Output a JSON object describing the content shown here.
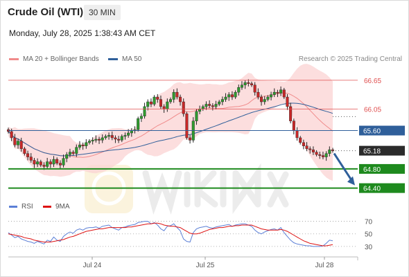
{
  "header": {
    "instrument": "Crude Oil (WTI)",
    "timeframe": "30 MIN",
    "datetime": "Monday, July 28, 2025 1:38:43 AM CET",
    "credit": "Research © 2025 Trading Central"
  },
  "legend": {
    "ma20_label": "MA 20 + Bollinger Bands",
    "ma20_color": "#f08a8a",
    "ma50_label": "MA 50",
    "ma50_color": "#2f5f9a"
  },
  "rsi_legend": {
    "rsi_label": "RSI",
    "rsi_color": "#5b7fd6",
    "ma_label": "9MA",
    "ma_color": "#dd1111"
  },
  "chart_data": {
    "type": "candlestick",
    "title": "Crude Oil (WTI) 30 MIN",
    "x_ticks": [
      "Jul 24",
      "Jul 25",
      "Jul 28"
    ],
    "price_range": [
      64.25,
      66.85
    ],
    "levels": [
      {
        "value": 66.65,
        "label": "66.65",
        "type": "resistance",
        "color": "#e05050"
      },
      {
        "value": 66.05,
        "label": "66.05",
        "type": "resistance",
        "color": "#e05050"
      },
      {
        "value": 65.6,
        "label": "65.60",
        "type": "pivot",
        "color": "#2f5f9a"
      },
      {
        "value": 65.18,
        "label": "65.18",
        "type": "last_price",
        "color": "#2b2b2b"
      },
      {
        "value": 64.8,
        "label": "64.80",
        "type": "target",
        "color": "#1e8a1e"
      },
      {
        "value": 64.4,
        "label": "64.40",
        "type": "target",
        "color": "#1e8a1e"
      }
    ],
    "last_price": 65.18,
    "forecast_arrow": {
      "from": 65.18,
      "to": 64.4
    },
    "closes": [
      65.58,
      65.45,
      65.3,
      65.38,
      65.22,
      65.12,
      65.05,
      64.98,
      64.9,
      64.95,
      64.88,
      64.85,
      64.95,
      64.9,
      65.0,
      64.92,
      64.88,
      65.02,
      65.1,
      65.15,
      65.12,
      65.25,
      65.3,
      65.28,
      65.35,
      65.38,
      65.4,
      65.42,
      65.4,
      65.45,
      65.48,
      65.5,
      65.45,
      65.42,
      65.4,
      65.48,
      65.5,
      65.55,
      65.6,
      65.62,
      65.85,
      65.9,
      66.1,
      66.2,
      66.15,
      66.3,
      66.25,
      66.1,
      66.05,
      66.2,
      66.25,
      66.4,
      66.3,
      66.2,
      65.95,
      65.45,
      65.4,
      65.8,
      66.0,
      66.05,
      66.1,
      66.15,
      66.12,
      66.1,
      66.15,
      66.2,
      66.25,
      66.3,
      66.35,
      66.3,
      66.4,
      66.5,
      66.55,
      66.6,
      66.58,
      66.55,
      66.4,
      66.3,
      66.2,
      66.25,
      66.3,
      66.35,
      66.4,
      66.38,
      66.45,
      66.3,
      66.1,
      65.8,
      65.6,
      65.45,
      65.35,
      65.28,
      65.22,
      65.2,
      65.15,
      65.1,
      65.08,
      65.05,
      65.12,
      65.2,
      65.18
    ],
    "rsi": {
      "ticks": [
        70,
        50,
        30
      ],
      "range": [
        20,
        75
      ],
      "rsi_values": [
        52,
        48,
        44,
        46,
        42,
        40,
        38,
        37,
        35,
        38,
        36,
        34,
        40,
        38,
        45,
        40,
        38,
        46,
        50,
        53,
        51,
        56,
        58,
        56,
        59,
        60,
        60,
        61,
        59,
        62,
        63,
        64,
        60,
        58,
        56,
        60,
        61,
        63,
        64,
        65,
        68,
        69,
        70,
        70,
        66,
        68,
        64,
        58,
        55,
        62,
        63,
        66,
        60,
        55,
        42,
        38,
        37,
        52,
        58,
        60,
        61,
        62,
        60,
        59,
        61,
        62,
        63,
        64,
        65,
        62,
        64,
        65,
        66,
        66,
        64,
        62,
        56,
        52,
        50,
        53,
        55,
        57,
        58,
        56,
        60,
        52,
        46,
        40,
        36,
        34,
        33,
        32,
        31,
        31,
        30,
        30,
        30,
        31,
        35,
        40,
        39
      ],
      "ma_values": [
        50,
        49,
        48,
        47,
        46,
        44,
        43,
        42,
        40,
        39,
        38,
        37,
        37,
        37,
        38,
        39,
        40,
        41,
        43,
        45,
        46,
        48,
        50,
        52,
        54,
        55,
        56,
        57,
        58,
        58,
        59,
        60,
        60,
        60,
        60,
        60,
        60,
        61,
        61,
        62,
        63,
        64,
        65,
        66,
        66,
        67,
        67,
        66,
        64,
        63,
        62,
        62,
        61,
        60,
        57,
        54,
        51,
        50,
        50,
        51,
        53,
        55,
        57,
        58,
        59,
        60,
        60,
        61,
        62,
        62,
        63,
        63,
        64,
        64,
        64,
        64,
        62,
        60,
        58,
        57,
        56,
        56,
        56,
        56,
        57,
        56,
        54,
        51,
        48,
        45,
        42,
        39,
        37,
        35,
        34,
        33,
        32,
        31,
        31,
        32,
        33
      ]
    }
  }
}
